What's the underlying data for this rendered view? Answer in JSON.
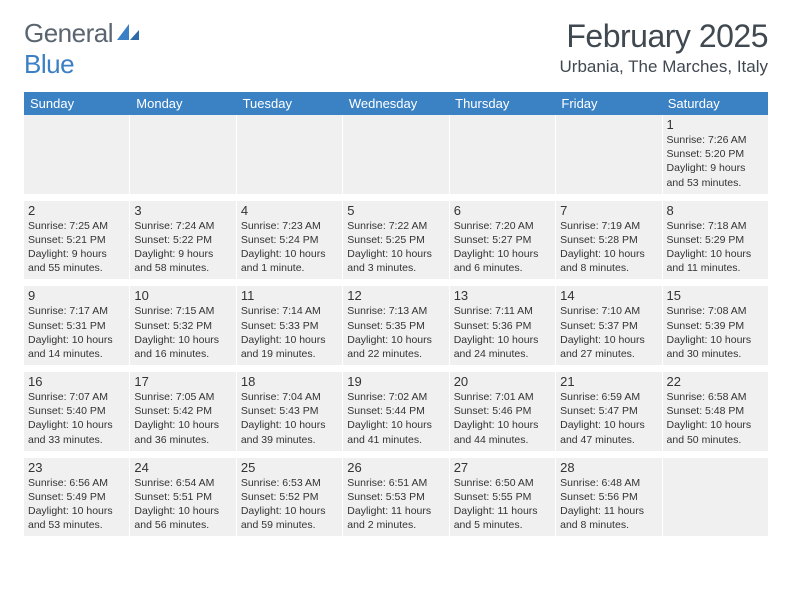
{
  "logo": {
    "text1": "General",
    "text2": "Blue"
  },
  "title": "February 2025",
  "location": "Urbania, The Marches, Italy",
  "colors": {
    "header_bg": "#3b82c4",
    "header_text": "#ffffff",
    "alt_row_bg": "#f0f0f0",
    "text": "#333333",
    "title_text": "#404850",
    "logo_gray": "#5a6570",
    "logo_blue": "#3b7fc4"
  },
  "dow": [
    "Sunday",
    "Monday",
    "Tuesday",
    "Wednesday",
    "Thursday",
    "Friday",
    "Saturday"
  ],
  "weeks": [
    [
      {
        "day": "",
        "sunrise": "",
        "sunset": "",
        "daylight": "",
        "empty": true
      },
      {
        "day": "",
        "sunrise": "",
        "sunset": "",
        "daylight": "",
        "empty": true
      },
      {
        "day": "",
        "sunrise": "",
        "sunset": "",
        "daylight": "",
        "empty": true
      },
      {
        "day": "",
        "sunrise": "",
        "sunset": "",
        "daylight": "",
        "empty": true
      },
      {
        "day": "",
        "sunrise": "",
        "sunset": "",
        "daylight": "",
        "empty": true
      },
      {
        "day": "",
        "sunrise": "",
        "sunset": "",
        "daylight": "",
        "empty": true
      },
      {
        "day": "1",
        "sunrise": "Sunrise: 7:26 AM",
        "sunset": "Sunset: 5:20 PM",
        "daylight": "Daylight: 9 hours and 53 minutes."
      }
    ],
    [
      {
        "day": "2",
        "sunrise": "Sunrise: 7:25 AM",
        "sunset": "Sunset: 5:21 PM",
        "daylight": "Daylight: 9 hours and 55 minutes."
      },
      {
        "day": "3",
        "sunrise": "Sunrise: 7:24 AM",
        "sunset": "Sunset: 5:22 PM",
        "daylight": "Daylight: 9 hours and 58 minutes."
      },
      {
        "day": "4",
        "sunrise": "Sunrise: 7:23 AM",
        "sunset": "Sunset: 5:24 PM",
        "daylight": "Daylight: 10 hours and 1 minute."
      },
      {
        "day": "5",
        "sunrise": "Sunrise: 7:22 AM",
        "sunset": "Sunset: 5:25 PM",
        "daylight": "Daylight: 10 hours and 3 minutes."
      },
      {
        "day": "6",
        "sunrise": "Sunrise: 7:20 AM",
        "sunset": "Sunset: 5:27 PM",
        "daylight": "Daylight: 10 hours and 6 minutes."
      },
      {
        "day": "7",
        "sunrise": "Sunrise: 7:19 AM",
        "sunset": "Sunset: 5:28 PM",
        "daylight": "Daylight: 10 hours and 8 minutes."
      },
      {
        "day": "8",
        "sunrise": "Sunrise: 7:18 AM",
        "sunset": "Sunset: 5:29 PM",
        "daylight": "Daylight: 10 hours and 11 minutes."
      }
    ],
    [
      {
        "day": "9",
        "sunrise": "Sunrise: 7:17 AM",
        "sunset": "Sunset: 5:31 PM",
        "daylight": "Daylight: 10 hours and 14 minutes."
      },
      {
        "day": "10",
        "sunrise": "Sunrise: 7:15 AM",
        "sunset": "Sunset: 5:32 PM",
        "daylight": "Daylight: 10 hours and 16 minutes."
      },
      {
        "day": "11",
        "sunrise": "Sunrise: 7:14 AM",
        "sunset": "Sunset: 5:33 PM",
        "daylight": "Daylight: 10 hours and 19 minutes."
      },
      {
        "day": "12",
        "sunrise": "Sunrise: 7:13 AM",
        "sunset": "Sunset: 5:35 PM",
        "daylight": "Daylight: 10 hours and 22 minutes."
      },
      {
        "day": "13",
        "sunrise": "Sunrise: 7:11 AM",
        "sunset": "Sunset: 5:36 PM",
        "daylight": "Daylight: 10 hours and 24 minutes."
      },
      {
        "day": "14",
        "sunrise": "Sunrise: 7:10 AM",
        "sunset": "Sunset: 5:37 PM",
        "daylight": "Daylight: 10 hours and 27 minutes."
      },
      {
        "day": "15",
        "sunrise": "Sunrise: 7:08 AM",
        "sunset": "Sunset: 5:39 PM",
        "daylight": "Daylight: 10 hours and 30 minutes."
      }
    ],
    [
      {
        "day": "16",
        "sunrise": "Sunrise: 7:07 AM",
        "sunset": "Sunset: 5:40 PM",
        "daylight": "Daylight: 10 hours and 33 minutes."
      },
      {
        "day": "17",
        "sunrise": "Sunrise: 7:05 AM",
        "sunset": "Sunset: 5:42 PM",
        "daylight": "Daylight: 10 hours and 36 minutes."
      },
      {
        "day": "18",
        "sunrise": "Sunrise: 7:04 AM",
        "sunset": "Sunset: 5:43 PM",
        "daylight": "Daylight: 10 hours and 39 minutes."
      },
      {
        "day": "19",
        "sunrise": "Sunrise: 7:02 AM",
        "sunset": "Sunset: 5:44 PM",
        "daylight": "Daylight: 10 hours and 41 minutes."
      },
      {
        "day": "20",
        "sunrise": "Sunrise: 7:01 AM",
        "sunset": "Sunset: 5:46 PM",
        "daylight": "Daylight: 10 hours and 44 minutes."
      },
      {
        "day": "21",
        "sunrise": "Sunrise: 6:59 AM",
        "sunset": "Sunset: 5:47 PM",
        "daylight": "Daylight: 10 hours and 47 minutes."
      },
      {
        "day": "22",
        "sunrise": "Sunrise: 6:58 AM",
        "sunset": "Sunset: 5:48 PM",
        "daylight": "Daylight: 10 hours and 50 minutes."
      }
    ],
    [
      {
        "day": "23",
        "sunrise": "Sunrise: 6:56 AM",
        "sunset": "Sunset: 5:49 PM",
        "daylight": "Daylight: 10 hours and 53 minutes."
      },
      {
        "day": "24",
        "sunrise": "Sunrise: 6:54 AM",
        "sunset": "Sunset: 5:51 PM",
        "daylight": "Daylight: 10 hours and 56 minutes."
      },
      {
        "day": "25",
        "sunrise": "Sunrise: 6:53 AM",
        "sunset": "Sunset: 5:52 PM",
        "daylight": "Daylight: 10 hours and 59 minutes."
      },
      {
        "day": "26",
        "sunrise": "Sunrise: 6:51 AM",
        "sunset": "Sunset: 5:53 PM",
        "daylight": "Daylight: 11 hours and 2 minutes."
      },
      {
        "day": "27",
        "sunrise": "Sunrise: 6:50 AM",
        "sunset": "Sunset: 5:55 PM",
        "daylight": "Daylight: 11 hours and 5 minutes."
      },
      {
        "day": "28",
        "sunrise": "Sunrise: 6:48 AM",
        "sunset": "Sunset: 5:56 PM",
        "daylight": "Daylight: 11 hours and 8 minutes."
      },
      {
        "day": "",
        "sunrise": "",
        "sunset": "",
        "daylight": "",
        "empty": true
      }
    ]
  ]
}
